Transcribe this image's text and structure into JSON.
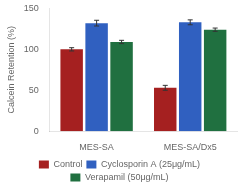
{
  "chart_data": {
    "type": "bar",
    "categories": [
      "MES-SA",
      "MES-SA/Dx5"
    ],
    "series": [
      {
        "name": "Control",
        "color": "#a52020",
        "values": [
          100,
          53
        ],
        "errors": [
          2,
          3
        ]
      },
      {
        "name": "Cyclosporin A (25μg/mL)",
        "color": "#3060c0",
        "values": [
          132,
          133
        ],
        "errors": [
          3.5,
          3
        ]
      },
      {
        "name": "Verapamil (50μg/mL)",
        "color": "#207040",
        "values": [
          109,
          124
        ],
        "errors": [
          2,
          2
        ]
      }
    ],
    "ylabel": "Calcein Retention (%)",
    "ylim": [
      0,
      150
    ],
    "yticks": [
      0,
      50,
      100,
      150
    ],
    "grid": false,
    "legend": "bottom"
  }
}
